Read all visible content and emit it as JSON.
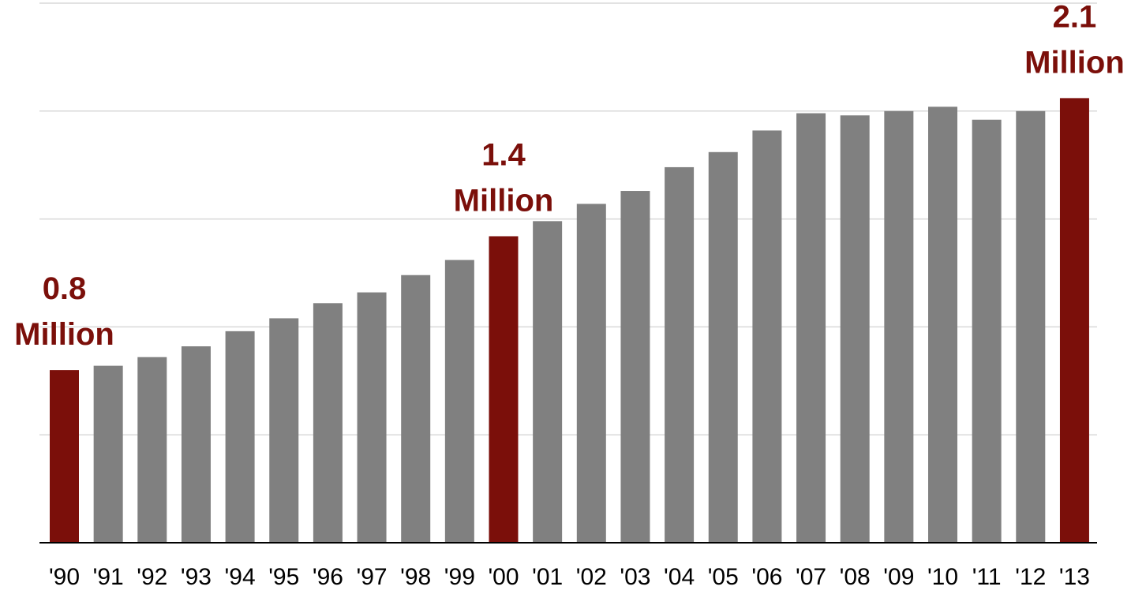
{
  "chart_data": {
    "type": "bar",
    "categories": [
      "'90",
      "'91",
      "'92",
      "'93",
      "'94",
      "'95",
      "'96",
      "'97",
      "'98",
      "'99",
      "'00",
      "'01",
      "'02",
      "'03",
      "'04",
      "'05",
      "'06",
      "'07",
      "'08",
      "'09",
      "'10",
      "'11",
      "'12",
      "'13"
    ],
    "values": [
      0.8,
      0.82,
      0.86,
      0.91,
      0.98,
      1.04,
      1.11,
      1.16,
      1.24,
      1.31,
      1.42,
      1.49,
      1.57,
      1.63,
      1.74,
      1.81,
      1.91,
      1.99,
      1.98,
      2.0,
      2.02,
      1.96,
      2.0,
      2.06
    ],
    "highlight_indices": [
      0,
      10,
      23
    ],
    "annotations": [
      {
        "index": 0,
        "line1": "0.8",
        "line2": "Million"
      },
      {
        "index": 10,
        "line1": "1.4",
        "line2": "Million"
      },
      {
        "index": 23,
        "line1": "2.1",
        "line2": "Million"
      }
    ],
    "ylim": [
      0,
      2.5
    ],
    "grid": true,
    "colors": {
      "bar": "#808080",
      "highlight": "#7b0f0a",
      "grid": "#d9d9d9",
      "axis": "#000000"
    }
  }
}
